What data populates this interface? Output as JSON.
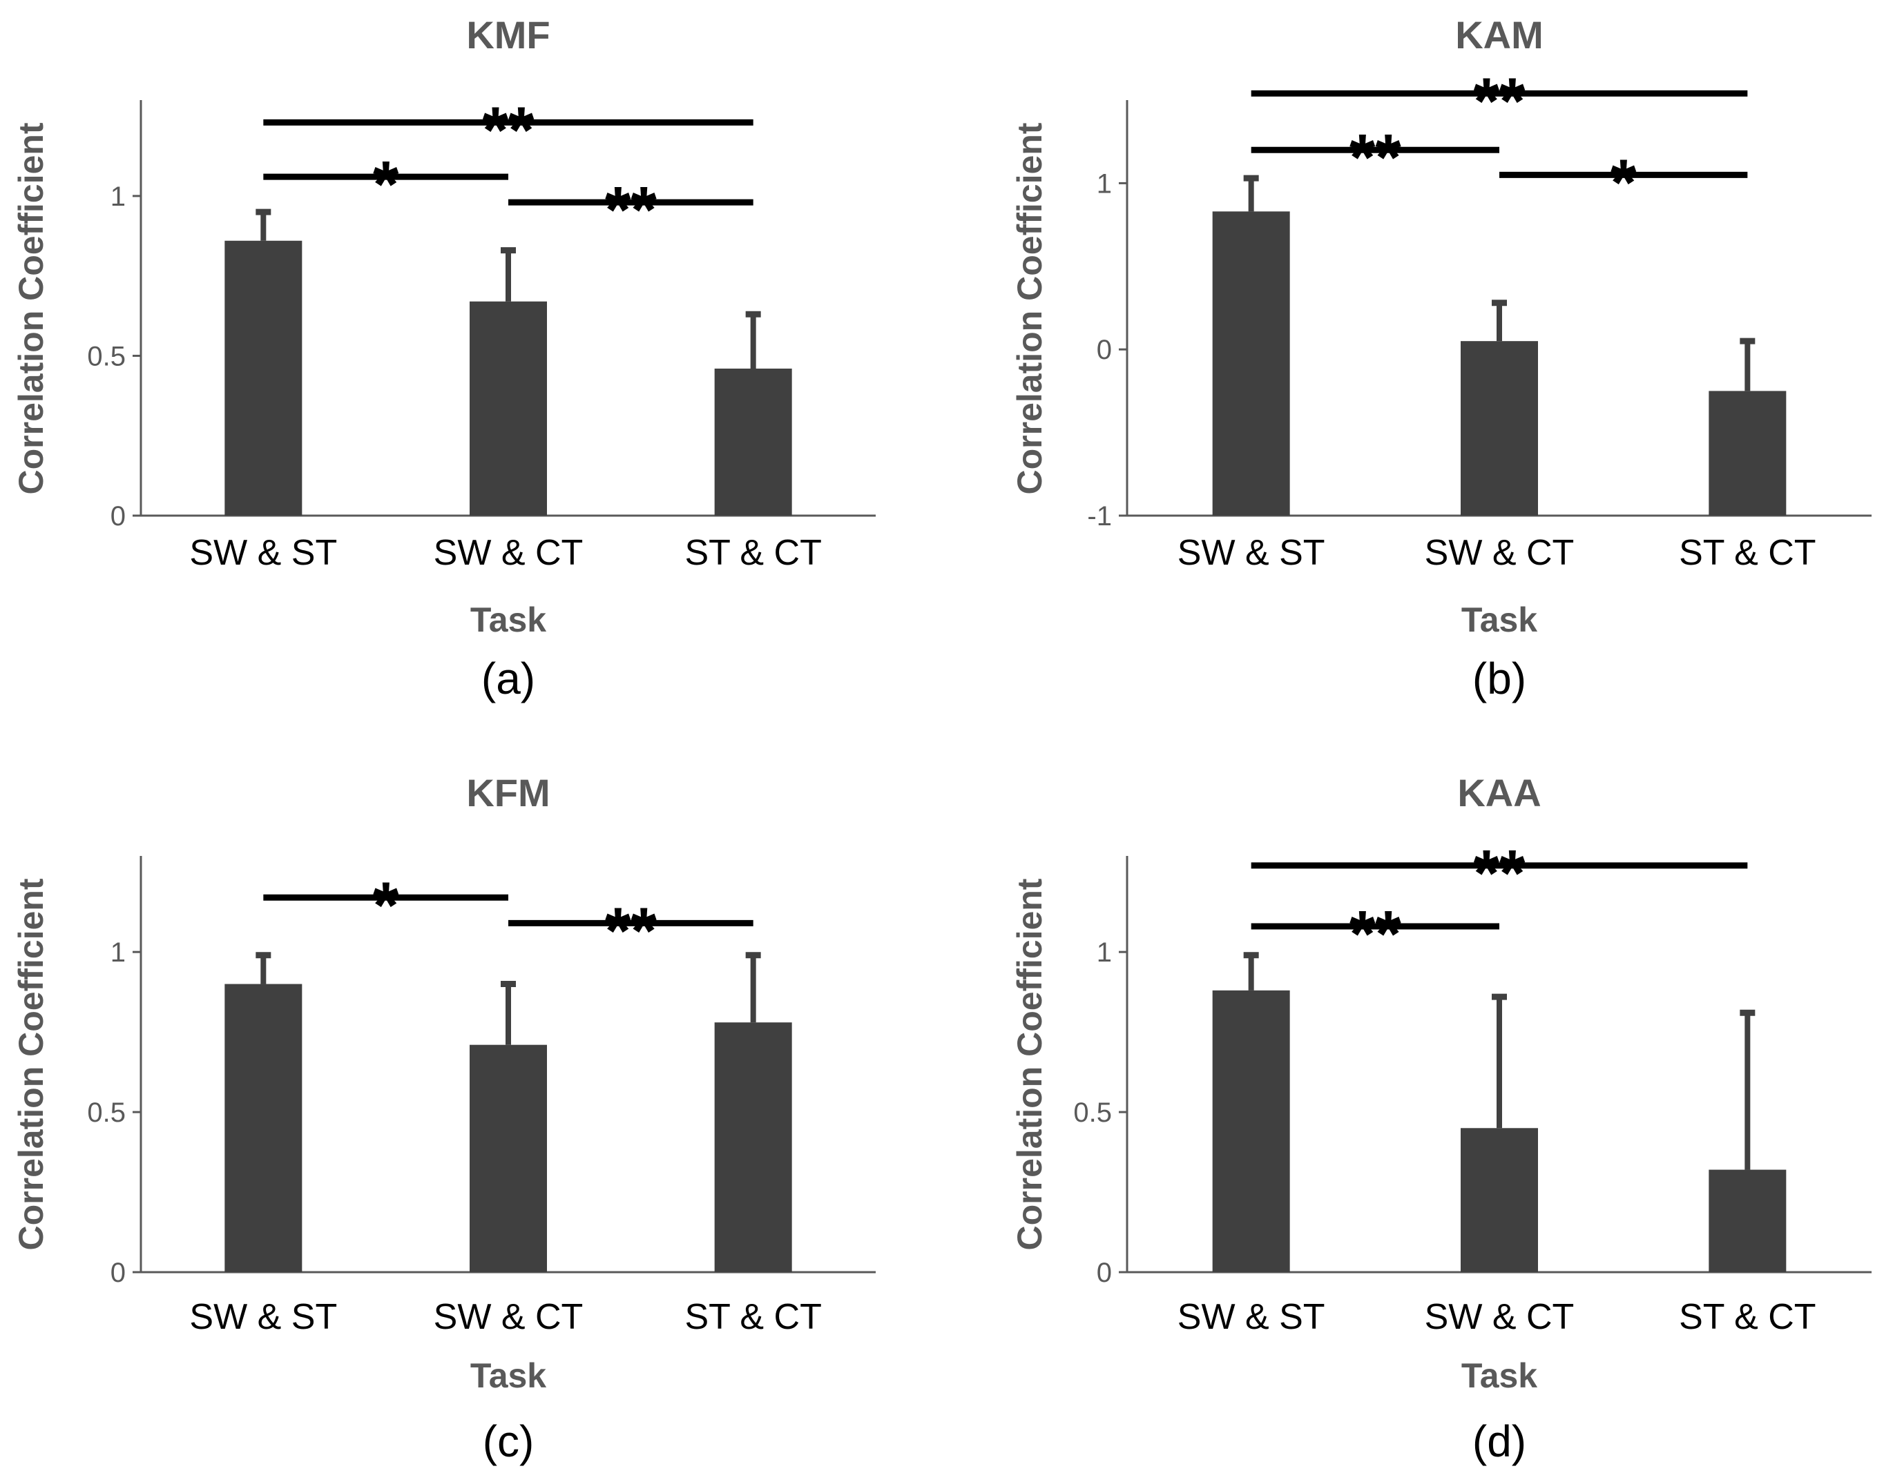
{
  "figure": {
    "colors": {
      "bar": "#404040",
      "axis": "#595959",
      "sig": "#000000"
    }
  },
  "chart_data": [
    {
      "type": "bar",
      "panel_label": "(a)",
      "title": "KMF",
      "xlabel": "Task",
      "ylabel": "Correlation Coefficient",
      "categories": [
        "SW & ST",
        "SW & CT",
        "ST & CT"
      ],
      "values": [
        0.86,
        0.67,
        0.46
      ],
      "error_plus": [
        0.09,
        0.16,
        0.17
      ],
      "ylim": [
        0,
        1.3
      ],
      "yticks": [
        0,
        0.5,
        1
      ],
      "ytick_labels": [
        "0",
        "0.5",
        "1"
      ],
      "significance": [
        {
          "from": 0,
          "to": 2,
          "y": 1.23,
          "label": "**"
        },
        {
          "from": 0,
          "to": 1,
          "y": 1.06,
          "label": "*"
        },
        {
          "from": 1,
          "to": 2,
          "y": 0.98,
          "label": "**"
        }
      ]
    },
    {
      "type": "bar",
      "panel_label": "(b)",
      "title": "KAM",
      "xlabel": "Task",
      "ylabel": "Correlation Coefficient",
      "categories": [
        "SW & ST",
        "SW & CT",
        "ST & CT"
      ],
      "values": [
        0.83,
        0.05,
        -0.25
      ],
      "error_plus": [
        0.2,
        0.23,
        0.3
      ],
      "ylim": [
        -1,
        1.5
      ],
      "yticks": [
        -1,
        0,
        1
      ],
      "ytick_labels": [
        "-1",
        "0",
        "1"
      ],
      "significance": [
        {
          "from": 0,
          "to": 2,
          "y": 1.54,
          "label": "**"
        },
        {
          "from": 0,
          "to": 1,
          "y": 1.2,
          "label": "**"
        },
        {
          "from": 1,
          "to": 2,
          "y": 1.05,
          "label": "*"
        }
      ]
    },
    {
      "type": "bar",
      "panel_label": "(c)",
      "title": "KFM",
      "xlabel": "Task",
      "ylabel": "Correlation Coefficient",
      "categories": [
        "SW & ST",
        "SW & CT",
        "ST & CT"
      ],
      "values": [
        0.9,
        0.71,
        0.78
      ],
      "error_plus": [
        0.09,
        0.19,
        0.21
      ],
      "ylim": [
        0,
        1.3
      ],
      "yticks": [
        0,
        0.5,
        1
      ],
      "ytick_labels": [
        "0",
        "0.5",
        "1"
      ],
      "significance": [
        {
          "from": 0,
          "to": 1,
          "y": 1.17,
          "label": "*"
        },
        {
          "from": 1,
          "to": 2,
          "y": 1.09,
          "label": "**"
        }
      ]
    },
    {
      "type": "bar",
      "panel_label": "(d)",
      "title": "KAA",
      "xlabel": "Task",
      "ylabel": "Correlation Coefficient",
      "categories": [
        "SW & ST",
        "SW & CT",
        "ST & CT"
      ],
      "values": [
        0.88,
        0.45,
        0.32
      ],
      "error_plus": [
        0.11,
        0.41,
        0.49
      ],
      "ylim": [
        0,
        1.3
      ],
      "yticks": [
        0,
        0.5,
        1
      ],
      "ytick_labels": [
        "0",
        "0.5",
        "1"
      ],
      "significance": [
        {
          "from": 0,
          "to": 2,
          "y": 1.27,
          "label": "**"
        },
        {
          "from": 0,
          "to": 1,
          "y": 1.08,
          "label": "**"
        }
      ]
    }
  ]
}
